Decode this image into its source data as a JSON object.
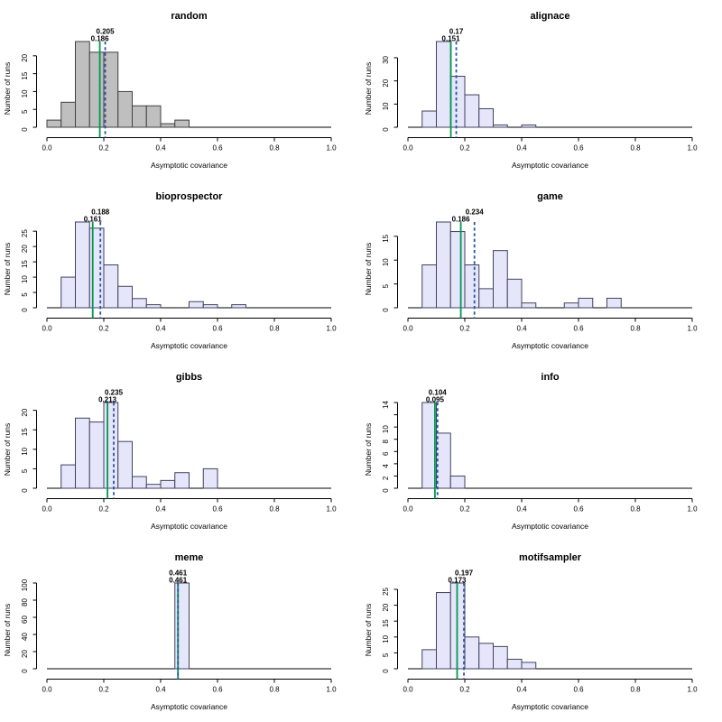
{
  "figure": {
    "background": "#ffffff",
    "layout": "4 rows x 2 columns of histograms"
  },
  "colors": {
    "solid_mean_line": "#009951",
    "dashed_mean_line": "#2854AA",
    "axis": "#000000",
    "text": "#000000",
    "gray_fill": "#BFBFBF",
    "gray_border": "#404040",
    "lavender_fill": "#E6E6FA",
    "lavender_border": "#40405E"
  },
  "chart_data": [
    {
      "type": "histogram",
      "title": "random",
      "xlabel": "Asymptotic covariance",
      "ylabel": "Number of runs",
      "xlim": [
        0,
        1
      ],
      "xticks": [
        0,
        0.2,
        0.4,
        0.6,
        0.8,
        1.0
      ],
      "xtick_labels": [
        "0.0",
        "0.2",
        "0.4",
        "0.6",
        "0.8",
        "1.0"
      ],
      "bin_width": 0.05,
      "bins": [
        [
          0.0,
          2
        ],
        [
          0.05,
          7
        ],
        [
          0.1,
          24
        ],
        [
          0.15,
          21
        ],
        [
          0.2,
          21
        ],
        [
          0.25,
          10
        ],
        [
          0.3,
          6
        ],
        [
          0.35,
          6
        ],
        [
          0.4,
          1
        ],
        [
          0.45,
          2
        ]
      ],
      "ymax": 24,
      "yticks": [
        0,
        5,
        10,
        15,
        20
      ],
      "ytick_labels": [
        "0",
        "5",
        "10",
        "15",
        "20"
      ],
      "solid_line": 0.186,
      "dashed_line": 0.205,
      "annotations": {
        "dashed": "0.205",
        "solid": "0.186"
      },
      "fill": "#BFBFBF",
      "border": "#404040"
    },
    {
      "type": "histogram",
      "title": "alignace",
      "xlabel": "Asymptotic covariance",
      "ylabel": "Number of runs",
      "xlim": [
        0,
        1
      ],
      "xticks": [
        0,
        0.2,
        0.4,
        0.6,
        0.8,
        1.0
      ],
      "xtick_labels": [
        "0.0",
        "0.2",
        "0.4",
        "0.6",
        "0.8",
        "1.0"
      ],
      "bin_width": 0.05,
      "bins": [
        [
          0.05,
          7
        ],
        [
          0.1,
          37
        ],
        [
          0.15,
          22
        ],
        [
          0.2,
          14
        ],
        [
          0.25,
          8
        ],
        [
          0.3,
          1
        ],
        [
          0.4,
          1
        ]
      ],
      "ymax": 37,
      "yticks": [
        0,
        10,
        20,
        30
      ],
      "ytick_labels": [
        "0",
        "10",
        "20",
        "30"
      ],
      "solid_line": 0.151,
      "dashed_line": 0.17,
      "annotations": {
        "dashed": "0.17",
        "solid": "0.151"
      },
      "fill": "#E6E6FA",
      "border": "#40405E"
    },
    {
      "type": "histogram",
      "title": "bioprospector",
      "xlabel": "Asymptotic covariance",
      "ylabel": "Number of runs",
      "xlim": [
        0,
        1
      ],
      "xticks": [
        0,
        0.2,
        0.4,
        0.6,
        0.8,
        1.0
      ],
      "xtick_labels": [
        "0.0",
        "0.2",
        "0.4",
        "0.6",
        "0.8",
        "1.0"
      ],
      "bin_width": 0.05,
      "bins": [
        [
          0.05,
          10
        ],
        [
          0.1,
          28
        ],
        [
          0.15,
          26
        ],
        [
          0.2,
          14
        ],
        [
          0.25,
          7
        ],
        [
          0.3,
          3
        ],
        [
          0.35,
          1
        ],
        [
          0.5,
          2
        ],
        [
          0.55,
          1
        ],
        [
          0.65,
          1
        ]
      ],
      "ymax": 28,
      "yticks": [
        0,
        5,
        10,
        15,
        20,
        25
      ],
      "ytick_labels": [
        "0",
        "5",
        "10",
        "15",
        "20",
        "25"
      ],
      "solid_line": 0.161,
      "dashed_line": 0.188,
      "annotations": {
        "dashed": "0.188",
        "solid": "0.161"
      },
      "fill": "#E6E6FA",
      "border": "#40405E"
    },
    {
      "type": "histogram",
      "title": "game",
      "xlabel": "Asymptotic covariance",
      "ylabel": "Number of runs",
      "xlim": [
        0,
        1
      ],
      "xticks": [
        0,
        0.2,
        0.4,
        0.6,
        0.8,
        1.0
      ],
      "xtick_labels": [
        "0.0",
        "0.2",
        "0.4",
        "0.6",
        "0.8",
        "1.0"
      ],
      "bin_width": 0.05,
      "bins": [
        [
          0.05,
          9
        ],
        [
          0.1,
          18
        ],
        [
          0.15,
          16
        ],
        [
          0.2,
          9
        ],
        [
          0.25,
          4
        ],
        [
          0.3,
          12
        ],
        [
          0.35,
          6
        ],
        [
          0.4,
          1
        ],
        [
          0.55,
          1
        ],
        [
          0.6,
          2
        ],
        [
          0.7,
          2
        ]
      ],
      "ymax": 18,
      "yticks": [
        0,
        5,
        10,
        15
      ],
      "ytick_labels": [
        "0",
        "5",
        "10",
        "15"
      ],
      "solid_line": 0.186,
      "dashed_line": 0.234,
      "annotations": {
        "dashed": "0.234",
        "solid": "0.186"
      },
      "fill": "#E6E6FA",
      "border": "#40405E"
    },
    {
      "type": "histogram",
      "title": "gibbs",
      "xlabel": "Asymptotic covariance",
      "ylabel": "Number of runs",
      "xlim": [
        0,
        1
      ],
      "xticks": [
        0,
        0.2,
        0.4,
        0.6,
        0.8,
        1.0
      ],
      "xtick_labels": [
        "0.0",
        "0.2",
        "0.4",
        "0.6",
        "0.8",
        "1.0"
      ],
      "bin_width": 0.05,
      "bins": [
        [
          0.05,
          6
        ],
        [
          0.1,
          18
        ],
        [
          0.15,
          17
        ],
        [
          0.2,
          22
        ],
        [
          0.25,
          12
        ],
        [
          0.3,
          3
        ],
        [
          0.35,
          1
        ],
        [
          0.4,
          2
        ],
        [
          0.45,
          4
        ],
        [
          0.55,
          5
        ]
      ],
      "ymax": 22,
      "yticks": [
        0,
        5,
        10,
        15,
        20
      ],
      "ytick_labels": [
        "0",
        "5",
        "10",
        "15",
        "20"
      ],
      "solid_line": 0.213,
      "dashed_line": 0.235,
      "annotations": {
        "dashed": "0.235",
        "solid": "0.213"
      },
      "fill": "#E6E6FA",
      "border": "#40405E"
    },
    {
      "type": "histogram",
      "title": "info",
      "xlabel": "Asymptotic covariance",
      "ylabel": "Number of runs",
      "xlim": [
        0,
        1
      ],
      "xticks": [
        0,
        0.2,
        0.4,
        0.6,
        0.8,
        1.0
      ],
      "xtick_labels": [
        "0.0",
        "0.2",
        "0.4",
        "0.6",
        "0.8",
        "1.0"
      ],
      "bin_width": 0.05,
      "bins": [
        [
          0.05,
          14
        ],
        [
          0.1,
          9
        ],
        [
          0.15,
          2
        ]
      ],
      "ymax": 14,
      "yticks": [
        0,
        2,
        4,
        6,
        8,
        10,
        12,
        14
      ],
      "ytick_labels": [
        "0",
        "2",
        "4",
        "6",
        "8",
        "10",
        "",
        "14"
      ],
      "solid_line": 0.095,
      "dashed_line": 0.104,
      "annotations": {
        "dashed": "0.104",
        "solid": "0.095"
      },
      "fill": "#E6E6FA",
      "border": "#40405E"
    },
    {
      "type": "histogram",
      "title": "meme",
      "xlabel": "Asymptotic covariance",
      "ylabel": "Number of runs",
      "xlim": [
        0,
        1
      ],
      "xticks": [
        0,
        0.2,
        0.4,
        0.6,
        0.8,
        1.0
      ],
      "xtick_labels": [
        "0.0",
        "0.2",
        "0.4",
        "0.6",
        "0.8",
        "1.0"
      ],
      "bin_width": 0.05,
      "bins": [
        [
          0.45,
          100
        ]
      ],
      "ymax": 100,
      "yticks": [
        0,
        20,
        40,
        60,
        80,
        100
      ],
      "ytick_labels": [
        "0",
        "20",
        "40",
        "60",
        "80",
        "100"
      ],
      "solid_line": 0.461,
      "dashed_line": 0.461,
      "annotations": {
        "dashed": "0.461",
        "solid": "0.461"
      },
      "fill": "#E6E6FA",
      "border": "#40405E"
    },
    {
      "type": "histogram",
      "title": "motifsampler",
      "xlabel": "Asymptotic covariance",
      "ylabel": "Number of runs",
      "xlim": [
        0,
        1
      ],
      "xticks": [
        0,
        0.2,
        0.4,
        0.6,
        0.8,
        1.0
      ],
      "xtick_labels": [
        "0.0",
        "0.2",
        "0.4",
        "0.6",
        "0.8",
        "1.0"
      ],
      "bin_width": 0.05,
      "bins": [
        [
          0.05,
          6
        ],
        [
          0.1,
          24
        ],
        [
          0.15,
          27
        ],
        [
          0.2,
          10
        ],
        [
          0.25,
          8
        ],
        [
          0.3,
          7
        ],
        [
          0.35,
          3
        ],
        [
          0.4,
          2
        ]
      ],
      "ymax": 27,
      "yticks": [
        0,
        5,
        10,
        15,
        20,
        25
      ],
      "ytick_labels": [
        "0",
        "5",
        "10",
        "15",
        "20",
        "25"
      ],
      "solid_line": 0.173,
      "dashed_line": 0.197,
      "annotations": {
        "dashed": "0.197",
        "solid": "0.173"
      },
      "fill": "#E6E6FA",
      "border": "#40405E"
    }
  ]
}
